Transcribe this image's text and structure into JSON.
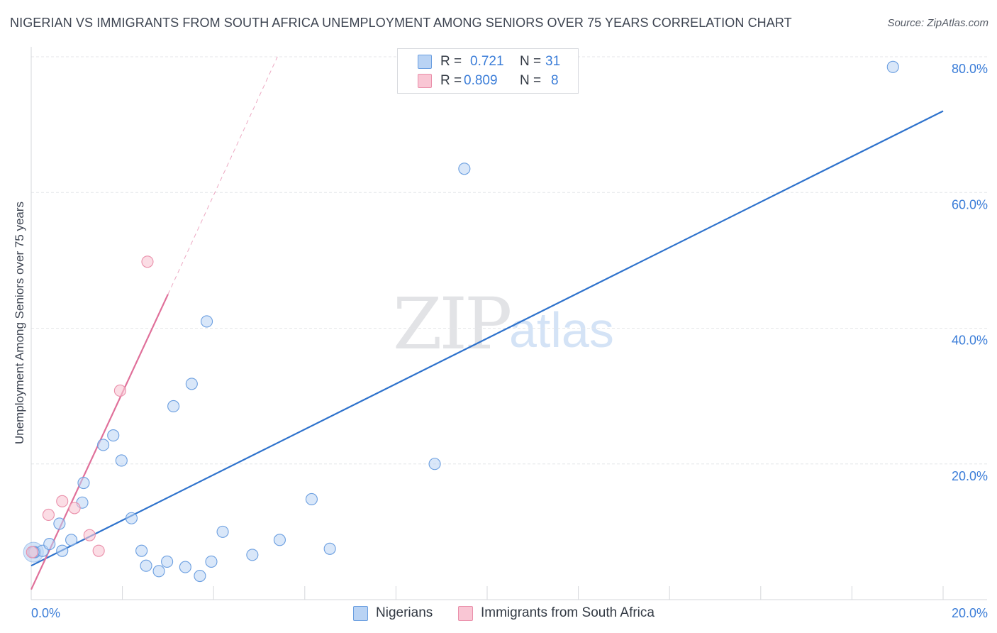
{
  "title": "NIGERIAN VS IMMIGRANTS FROM SOUTH AFRICA UNEMPLOYMENT AMONG SENIORS OVER 75 YEARS CORRELATION CHART",
  "source": "Source: ZipAtlas.com",
  "watermark": {
    "zip": "ZIP",
    "atlas": "atlas"
  },
  "legend": {
    "r_label": "R =",
    "n_label": "N =",
    "nigerians": {
      "r": "0.721",
      "n": "31"
    },
    "south_africa": {
      "r": "0.809",
      "n": "8"
    }
  },
  "colors": {
    "nigerians_fill": "#b9d3f4",
    "nigerians_stroke": "#6a9ee0",
    "nigerians_line": "#2e72cc",
    "sa_fill": "#f9c6d4",
    "sa_stroke": "#ea8faa",
    "sa_line": "#e0709a",
    "tick_label": "#3b7dd8",
    "grid": "#e4e5e8"
  },
  "chart_data": {
    "type": "scatter",
    "title": "NIGERIAN VS IMMIGRANTS FROM SOUTH AFRICA UNEMPLOYMENT AMONG SENIORS OVER 75 YEARS CORRELATION CHART",
    "xlabel": "",
    "ylabel": "Unemployment Among Seniors over 75 years",
    "xlim": [
      0,
      20
    ],
    "ylim": [
      0,
      80
    ],
    "x_tick_labels": [
      "0.0%",
      "20.0%"
    ],
    "y_ticks": [
      20,
      40,
      60,
      80
    ],
    "y_tick_labels": [
      "20.0%",
      "40.0%",
      "60.0%",
      "80.0%"
    ],
    "legend_position": "top-center",
    "series": [
      {
        "name": "Nigerians",
        "points": [
          [
            0.08,
            7.0
          ],
          [
            0.25,
            7.2
          ],
          [
            0.4,
            8.2
          ],
          [
            0.62,
            11.2
          ],
          [
            0.68,
            7.2
          ],
          [
            0.88,
            8.8
          ],
          [
            1.15,
            17.2
          ],
          [
            1.12,
            14.3
          ],
          [
            1.58,
            22.8
          ],
          [
            1.8,
            24.2
          ],
          [
            1.98,
            20.5
          ],
          [
            2.2,
            12.0
          ],
          [
            2.42,
            7.2
          ],
          [
            2.52,
            5.0
          ],
          [
            2.8,
            4.2
          ],
          [
            2.98,
            5.6
          ],
          [
            3.12,
            28.5
          ],
          [
            3.38,
            4.8
          ],
          [
            3.52,
            31.8
          ],
          [
            3.7,
            3.5
          ],
          [
            3.85,
            41.0
          ],
          [
            3.95,
            5.6
          ],
          [
            4.2,
            10.0
          ],
          [
            4.85,
            6.6
          ],
          [
            5.45,
            8.8
          ],
          [
            6.15,
            14.8
          ],
          [
            6.55,
            7.5
          ],
          [
            8.85,
            20.0
          ],
          [
            9.5,
            63.5
          ],
          [
            18.9,
            78.5
          ],
          [
            0.05,
            7.0
          ]
        ],
        "trendline": {
          "x": [
            0,
            20
          ],
          "y": [
            5.0,
            72.0
          ]
        }
      },
      {
        "name": "Immigrants from South Africa",
        "points": [
          [
            0.02,
            7.0
          ],
          [
            0.38,
            12.5
          ],
          [
            0.68,
            14.5
          ],
          [
            0.95,
            13.5
          ],
          [
            1.28,
            9.5
          ],
          [
            1.48,
            7.2
          ],
          [
            1.95,
            30.8
          ],
          [
            2.55,
            49.8
          ]
        ],
        "trendline": {
          "x": [
            0,
            3.0
          ],
          "y": [
            1.5,
            45.0
          ]
        },
        "trendline_extension": {
          "x": [
            3.0,
            5.4
          ],
          "y": [
            45.0,
            80.0
          ]
        }
      }
    ]
  },
  "bottom_legend": {
    "nigerians": "Nigerians",
    "south_africa": "Immigrants from South Africa"
  }
}
